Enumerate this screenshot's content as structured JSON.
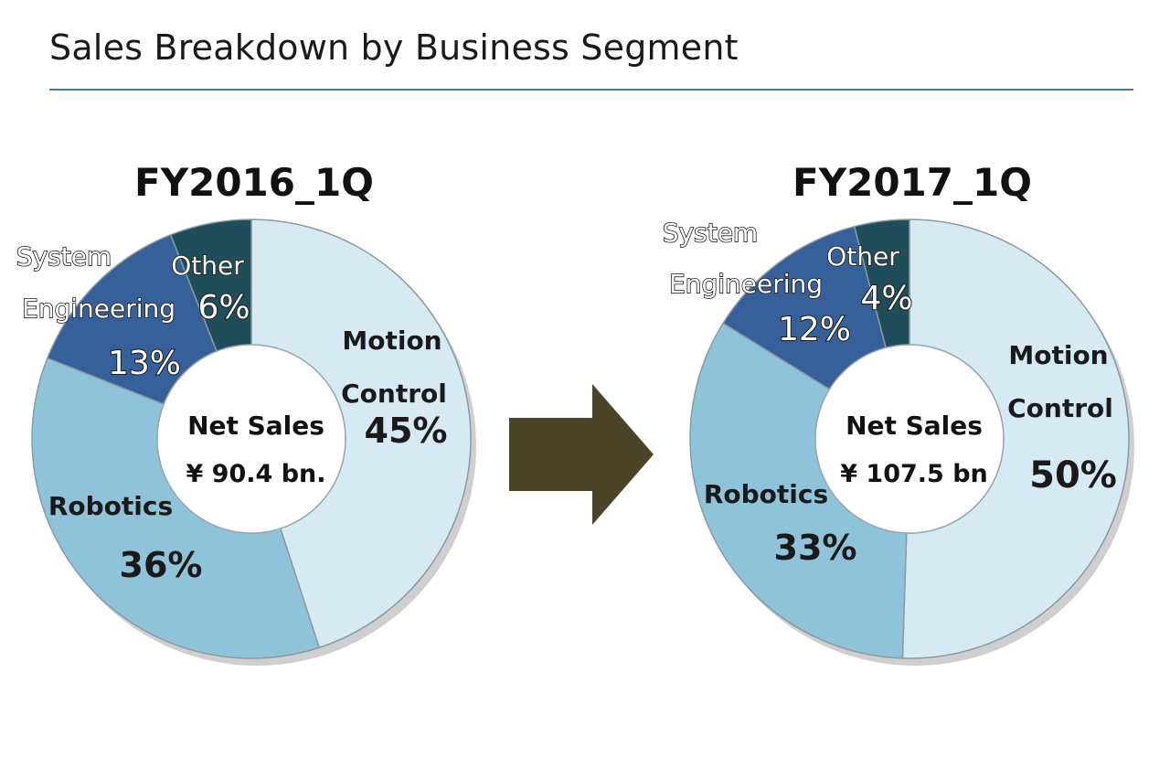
{
  "page": {
    "title": "Sales Breakdown by Business Segment"
  },
  "colors": {
    "rule": "#3d7fae",
    "arrow": "#4a4428",
    "motion_control": "#d6eaf3",
    "robotics": "#8fc3da",
    "system_engineering": "#35609a",
    "other": "#1f4e5a"
  },
  "chart_data": [
    {
      "type": "pie",
      "title": "FY2016_1Q",
      "center_label": "Net Sales",
      "center_value": "¥ 90.4 bn.",
      "categories": [
        "Motion Control",
        "Robotics",
        "System Engineering",
        "Other"
      ],
      "values": [
        45,
        36,
        13,
        6
      ],
      "value_labels": [
        "45%",
        "36%",
        "13%",
        "6%"
      ],
      "label_lines": {
        "motion_control": [
          "Motion",
          "Control"
        ],
        "robotics": [
          "Robotics"
        ],
        "system_engineering": [
          "System",
          "Engineering"
        ],
        "other": [
          "Other"
        ]
      }
    },
    {
      "type": "pie",
      "title": "FY2017_1Q",
      "center_label": "Net Sales",
      "center_value": "¥ 107.5 bn",
      "categories": [
        "Motion Control",
        "Robotics",
        "System Engineering",
        "Other"
      ],
      "values": [
        50,
        33,
        12,
        4
      ],
      "value_labels": [
        "50%",
        "33%",
        "12%",
        "4%"
      ],
      "label_lines": {
        "motion_control": [
          "Motion",
          "Control"
        ],
        "robotics": [
          "Robotics"
        ],
        "system_engineering": [
          "System",
          "Engineering"
        ],
        "other": [
          "Other"
        ]
      }
    }
  ]
}
